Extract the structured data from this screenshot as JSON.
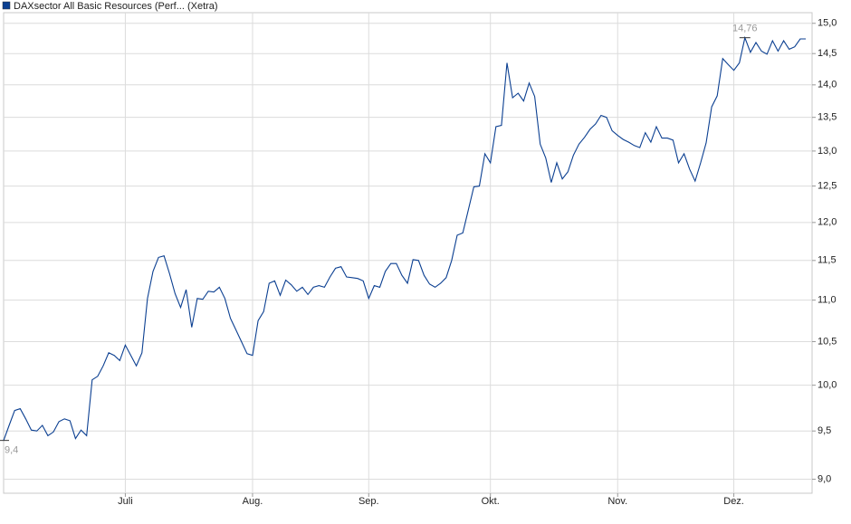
{
  "chart_data": {
    "type": "line",
    "log": true,
    "grid": true,
    "legend": "top-left",
    "categories": [
      null,
      null,
      null,
      null,
      null,
      null,
      null,
      null,
      null,
      null,
      null,
      null,
      null,
      null,
      null,
      null,
      null,
      null,
      null,
      null,
      null,
      null,
      "Juli",
      null,
      null,
      null,
      null,
      null,
      null,
      null,
      null,
      null,
      null,
      null,
      null,
      null,
      null,
      null,
      null,
      null,
      null,
      null,
      null,
      null,
      null,
      "Aug.",
      null,
      null,
      null,
      null,
      null,
      null,
      null,
      null,
      null,
      null,
      null,
      null,
      null,
      null,
      null,
      null,
      null,
      null,
      null,
      null,
      "Sep.",
      null,
      null,
      null,
      null,
      null,
      null,
      null,
      null,
      null,
      null,
      null,
      null,
      null,
      null,
      null,
      null,
      null,
      null,
      null,
      null,
      null,
      "Okt.",
      null,
      null,
      null,
      null,
      null,
      null,
      null,
      null,
      null,
      null,
      null,
      null,
      null,
      null,
      null,
      null,
      null,
      null,
      null,
      null,
      null,
      null,
      "Nov.",
      null,
      null,
      null,
      null,
      null,
      null,
      null,
      null,
      null,
      null,
      null,
      null,
      null,
      null,
      null,
      null,
      null,
      null,
      null,
      null,
      "Dez.",
      null,
      null,
      null,
      null,
      null,
      null,
      null,
      null,
      null,
      null,
      null,
      null,
      null
    ],
    "series": [
      {
        "name": "DAXsector All Basic Resources (Perf... (Xetra)",
        "color": "#0b3f91",
        "values": [
          9.4,
          9.56,
          9.72,
          9.74,
          9.63,
          9.51,
          9.5,
          9.56,
          9.45,
          9.49,
          9.6,
          9.63,
          9.61,
          9.42,
          9.51,
          9.45,
          10.06,
          10.1,
          10.22,
          10.37,
          10.34,
          10.28,
          10.46,
          10.34,
          10.22,
          10.37,
          11.02,
          11.36,
          11.54,
          11.56,
          11.33,
          11.08,
          10.91,
          11.13,
          10.67,
          11.02,
          11.01,
          11.11,
          11.1,
          11.16,
          11.02,
          10.78,
          10.64,
          10.5,
          10.36,
          10.34,
          10.75,
          10.86,
          11.21,
          11.24,
          11.06,
          11.25,
          11.19,
          11.11,
          11.16,
          11.07,
          11.16,
          11.18,
          11.16,
          11.29,
          11.4,
          11.42,
          11.29,
          11.28,
          11.27,
          11.24,
          11.02,
          11.18,
          11.16,
          11.36,
          11.46,
          11.46,
          11.31,
          11.21,
          11.51,
          11.5,
          11.31,
          11.2,
          11.16,
          11.21,
          11.28,
          11.5,
          11.83,
          11.86,
          12.17,
          12.49,
          12.5,
          12.96,
          12.83,
          13.36,
          13.38,
          14.35,
          13.8,
          13.87,
          13.75,
          14.03,
          13.82,
          13.1,
          12.9,
          12.55,
          12.83,
          12.6,
          12.7,
          12.94,
          13.1,
          13.2,
          13.32,
          13.4,
          13.53,
          13.5,
          13.3,
          13.23,
          13.17,
          13.13,
          13.08,
          13.05,
          13.27,
          13.13,
          13.36,
          13.19,
          13.19,
          13.16,
          12.83,
          12.96,
          12.74,
          12.57,
          12.83,
          13.12,
          13.66,
          13.83,
          14.42,
          14.32,
          14.23,
          14.35,
          14.76,
          14.52,
          14.68,
          14.54,
          14.49,
          14.71,
          14.54,
          14.71,
          14.57,
          14.61,
          14.74,
          14.74
        ]
      }
    ],
    "annotations": [
      {
        "label": "9,4",
        "value": 9.4
      },
      {
        "label": "14,76",
        "value": 14.76
      }
    ],
    "ylim": [
      8.86,
      15.18
    ],
    "yticks": [
      {
        "value": 9.0,
        "label": "9,0"
      },
      {
        "value": 9.5,
        "label": "9,5"
      },
      {
        "value": 10.0,
        "label": "10,0"
      },
      {
        "value": 10.5,
        "label": "10,5"
      },
      {
        "value": 11.0,
        "label": "11,0"
      },
      {
        "value": 11.5,
        "label": "11,5"
      },
      {
        "value": 12.0,
        "label": "12,0"
      },
      {
        "value": 12.5,
        "label": "12,5"
      },
      {
        "value": 13.0,
        "label": "13,0"
      },
      {
        "value": 13.5,
        "label": "13,5"
      },
      {
        "value": 14.0,
        "label": "14,0"
      },
      {
        "value": 14.5,
        "label": "14,5"
      },
      {
        "value": 15.0,
        "label": "15,0"
      }
    ]
  }
}
